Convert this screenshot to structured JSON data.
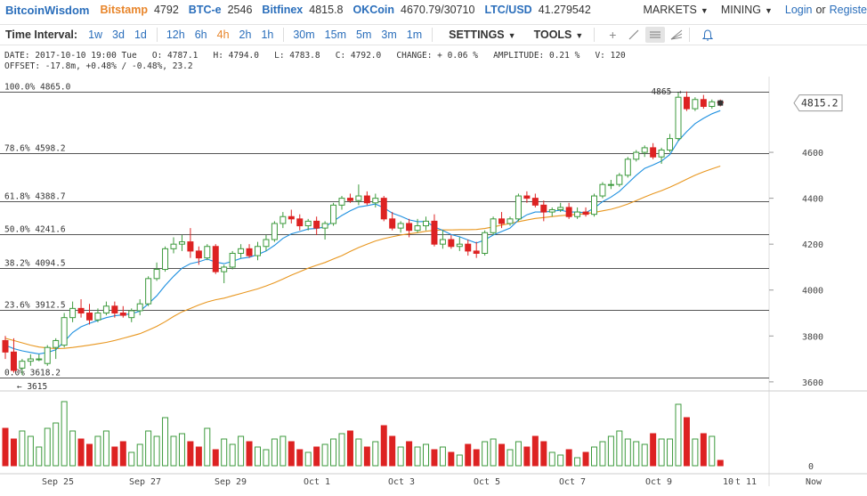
{
  "topbar": {
    "brand": "BitcoinWisdom",
    "exchanges": [
      {
        "name": "Bitstamp",
        "price": "4792",
        "active": true
      },
      {
        "name": "BTC-e",
        "price": "2546",
        "active": false
      },
      {
        "name": "Bitfinex",
        "price": "4815.8",
        "active": false
      },
      {
        "name": "OKCoin",
        "price": "4670.79/30710",
        "active": false
      },
      {
        "name": "LTC/USD",
        "price": "41.279542",
        "active": false
      }
    ],
    "markets_label": "MARKETS",
    "mining_label": "MINING",
    "login_label": "Login",
    "or_label": "or",
    "register_label": "Registe"
  },
  "toolbar": {
    "interval_label": "Time Interval:",
    "intervals": [
      "1w",
      "3d",
      "1d",
      "12h",
      "6h",
      "4h",
      "2h",
      "1h",
      "30m",
      "15m",
      "5m",
      "3m",
      "1m"
    ],
    "active_interval": "4h",
    "settings_label": "SETTINGS",
    "tools_label": "TOOLS",
    "icons": [
      "crosshair-icon",
      "line-draw-icon",
      "horizontal-lines-icon",
      "fan-lines-icon",
      "alert-bell-icon"
    ]
  },
  "info": {
    "line1": "DATE: 2017-10-10 19:00 Tue   O: 4787.1   H: 4794.0   L: 4783.8   C: 4792.0   CHANGE: + 0.06 %   AMPLITUDE: 0.21 %   V: 120",
    "line2": "OFFSET: -17.8m, +0.48% / -0.48%, 23.2"
  },
  "fib": [
    {
      "label": "100.0% 4865.0",
      "value": 4865.0
    },
    {
      "label": "78.6% 4598.2",
      "value": 4598.2
    },
    {
      "label": "61.8% 4388.7",
      "value": 4388.7
    },
    {
      "label": "50.0% 4241.6",
      "value": 4241.6
    },
    {
      "label": "38.2% 4094.5",
      "value": 4094.5
    },
    {
      "label": "23.6% 3912.5",
      "value": 3912.5
    },
    {
      "label": "0.0% 3618.2",
      "value": 3618.2
    }
  ],
  "current_price_label": "4815.2",
  "high_marker_label": "4865",
  "low_marker_label": "3615",
  "colors": {
    "up": "#3c9a3c",
    "down": "#dd2222",
    "ema_fast": "#1e90e0",
    "ema_slow": "#e8961e",
    "fib_line": "#555555",
    "accent": "#2a6ebb",
    "active": "#e8852a"
  },
  "chart_data": {
    "type": "candlestick",
    "y_axis": {
      "ticks": [
        3600,
        3800,
        4000,
        4200,
        4400,
        4600
      ],
      "range": [
        3580,
        4930
      ]
    },
    "volume_axis": {
      "ticks": [
        0
      ]
    },
    "x_labels": [
      "Sep 25",
      "Sep 27",
      "Sep 29",
      "Oct 1",
      "Oct 3",
      "Oct 5",
      "Oct 7",
      "Oct 9",
      "10",
      "t 11",
      "Now"
    ],
    "series": [
      {
        "name": "price",
        "ohlc": [
          [
            3780,
            3800,
            3700,
            3730
          ],
          [
            3730,
            3790,
            3640,
            3650
          ],
          [
            3660,
            3700,
            3630,
            3690
          ],
          [
            3690,
            3720,
            3670,
            3700
          ],
          [
            3700,
            3720,
            3690,
            3700
          ],
          [
            3680,
            3760,
            3670,
            3750
          ],
          [
            3750,
            3790,
            3700,
            3780
          ],
          [
            3760,
            3900,
            3750,
            3880
          ],
          [
            3880,
            3950,
            3860,
            3920
          ],
          [
            3920,
            3960,
            3880,
            3900
          ],
          [
            3900,
            3940,
            3850,
            3870
          ],
          [
            3870,
            3920,
            3860,
            3900
          ],
          [
            3900,
            3950,
            3890,
            3930
          ],
          [
            3930,
            3950,
            3880,
            3900
          ],
          [
            3900,
            3930,
            3880,
            3890
          ],
          [
            3880,
            3920,
            3860,
            3910
          ],
          [
            3910,
            3960,
            3890,
            3940
          ],
          [
            3940,
            4060,
            3930,
            4050
          ],
          [
            4050,
            4120,
            4040,
            4090
          ],
          [
            4090,
            4190,
            4080,
            4180
          ],
          [
            4180,
            4230,
            4160,
            4200
          ],
          [
            4200,
            4240,
            4170,
            4210
          ],
          [
            4210,
            4270,
            4140,
            4170
          ],
          [
            4170,
            4190,
            4110,
            4140
          ],
          [
            4140,
            4200,
            4130,
            4190
          ],
          [
            4190,
            4200,
            4070,
            4080
          ],
          [
            4080,
            4110,
            4030,
            4100
          ],
          [
            4100,
            4170,
            4090,
            4160
          ],
          [
            4160,
            4200,
            4140,
            4180
          ],
          [
            4180,
            4200,
            4140,
            4150
          ],
          [
            4150,
            4210,
            4130,
            4190
          ],
          [
            4190,
            4240,
            4170,
            4220
          ],
          [
            4220,
            4300,
            4210,
            4290
          ],
          [
            4290,
            4340,
            4270,
            4320
          ],
          [
            4320,
            4350,
            4290,
            4310
          ],
          [
            4310,
            4330,
            4260,
            4280
          ],
          [
            4280,
            4310,
            4260,
            4300
          ],
          [
            4300,
            4320,
            4240,
            4270
          ],
          [
            4270,
            4300,
            4220,
            4290
          ],
          [
            4290,
            4380,
            4280,
            4370
          ],
          [
            4370,
            4410,
            4350,
            4400
          ],
          [
            4400,
            4420,
            4380,
            4390
          ],
          [
            4390,
            4460,
            4370,
            4410
          ],
          [
            4410,
            4430,
            4370,
            4380
          ],
          [
            4380,
            4420,
            4360,
            4400
          ],
          [
            4400,
            4410,
            4300,
            4310
          ],
          [
            4310,
            4340,
            4260,
            4270
          ],
          [
            4270,
            4300,
            4250,
            4290
          ],
          [
            4290,
            4310,
            4230,
            4260
          ],
          [
            4260,
            4310,
            4250,
            4280
          ],
          [
            4280,
            4320,
            4260,
            4300
          ],
          [
            4300,
            4330,
            4190,
            4200
          ],
          [
            4200,
            4260,
            4180,
            4220
          ],
          [
            4220,
            4240,
            4180,
            4190
          ],
          [
            4190,
            4230,
            4170,
            4200
          ],
          [
            4200,
            4220,
            4150,
            4170
          ],
          [
            4170,
            4210,
            4140,
            4160
          ],
          [
            4160,
            4260,
            4150,
            4250
          ],
          [
            4250,
            4320,
            4240,
            4310
          ],
          [
            4310,
            4340,
            4270,
            4290
          ],
          [
            4290,
            4320,
            4280,
            4310
          ],
          [
            4310,
            4420,
            4300,
            4410
          ],
          [
            4410,
            4430,
            4380,
            4400
          ],
          [
            4400,
            4420,
            4360,
            4370
          ],
          [
            4370,
            4390,
            4300,
            4340
          ],
          [
            4340,
            4360,
            4320,
            4350
          ],
          [
            4350,
            4380,
            4340,
            4360
          ],
          [
            4360,
            4380,
            4310,
            4320
          ],
          [
            4320,
            4360,
            4310,
            4340
          ],
          [
            4340,
            4360,
            4320,
            4330
          ],
          [
            4330,
            4420,
            4320,
            4410
          ],
          [
            4410,
            4470,
            4400,
            4460
          ],
          [
            4460,
            4480,
            4440,
            4460
          ],
          [
            4460,
            4510,
            4450,
            4500
          ],
          [
            4500,
            4580,
            4490,
            4570
          ],
          [
            4570,
            4610,
            4560,
            4600
          ],
          [
            4600,
            4630,
            4580,
            4620
          ],
          [
            4620,
            4640,
            4570,
            4580
          ],
          [
            4580,
            4620,
            4550,
            4610
          ],
          [
            4610,
            4680,
            4600,
            4660
          ],
          [
            4660,
            4860,
            4650,
            4840
          ],
          [
            4840,
            4865,
            4780,
            4790
          ],
          [
            4790,
            4840,
            4780,
            4830
          ],
          [
            4830,
            4850,
            4790,
            4800
          ],
          [
            4800,
            4830,
            4790,
            4820
          ],
          [
            4820,
            4830,
            4800,
            4815
          ]
        ]
      },
      {
        "name": "volume",
        "values": [
          28,
          20,
          26,
          22,
          14,
          28,
          32,
          48,
          26,
          20,
          16,
          22,
          26,
          14,
          18,
          10,
          16,
          26,
          22,
          36,
          22,
          24,
          18,
          14,
          28,
          12,
          20,
          16,
          22,
          18,
          14,
          12,
          20,
          22,
          18,
          12,
          10,
          14,
          16,
          20,
          24,
          26,
          20,
          14,
          18,
          30,
          22,
          14,
          18,
          14,
          16,
          12,
          14,
          10,
          8,
          16,
          12,
          18,
          20,
          16,
          12,
          18,
          14,
          22,
          18,
          10,
          8,
          12,
          6,
          10,
          14,
          18,
          22,
          26,
          20,
          18,
          16,
          24,
          20,
          20,
          46,
          36,
          20,
          24,
          22,
          4
        ]
      },
      {
        "name": "ema_fast",
        "values": [
          3760,
          3745,
          3735,
          3728,
          3722,
          3728,
          3740,
          3775,
          3815,
          3840,
          3855,
          3868,
          3880,
          3888,
          3892,
          3897,
          3908,
          3940,
          3975,
          4020,
          4060,
          4095,
          4115,
          4123,
          4135,
          4122,
          4115,
          4125,
          4138,
          4143,
          4155,
          4170,
          4195,
          4225,
          4245,
          4255,
          4266,
          4268,
          4275,
          4300,
          4325,
          4345,
          4362,
          4368,
          4375,
          4358,
          4335,
          4322,
          4306,
          4298,
          4299,
          4275,
          4260,
          4242,
          4232,
          4218,
          4205,
          4218,
          4240,
          4255,
          4270,
          4305,
          4328,
          4340,
          4340,
          4343,
          4348,
          4340,
          4340,
          4337,
          4357,
          4385,
          4405,
          4430,
          4465,
          4500,
          4530,
          4545,
          4562,
          4590,
          4650,
          4690,
          4725,
          4748,
          4768,
          4782
        ]
      },
      {
        "name": "ema_slow",
        "values": [
          3790,
          3780,
          3770,
          3760,
          3752,
          3748,
          3745,
          3746,
          3750,
          3755,
          3760,
          3766,
          3772,
          3780,
          3790,
          3800,
          3810,
          3825,
          3842,
          3862,
          3885,
          3905,
          3920,
          3935,
          3948,
          3958,
          3965,
          3975,
          3985,
          3995,
          4005,
          4018,
          4032,
          4048,
          4065,
          4080,
          4095,
          4108,
          4120,
          4135,
          4150,
          4168,
          4185,
          4200,
          4214,
          4224,
          4232,
          4240,
          4245,
          4250,
          4256,
          4260,
          4262,
          4262,
          4263,
          4263,
          4264,
          4268,
          4275,
          4283,
          4290,
          4298,
          4305,
          4312,
          4316,
          4320,
          4324,
          4327,
          4330,
          4333,
          4338,
          4345,
          4352,
          4362,
          4375,
          4390,
          4405,
          4420,
          4433,
          4448,
          4465,
          4483,
          4500,
          4515,
          4528,
          4540
        ]
      }
    ]
  }
}
